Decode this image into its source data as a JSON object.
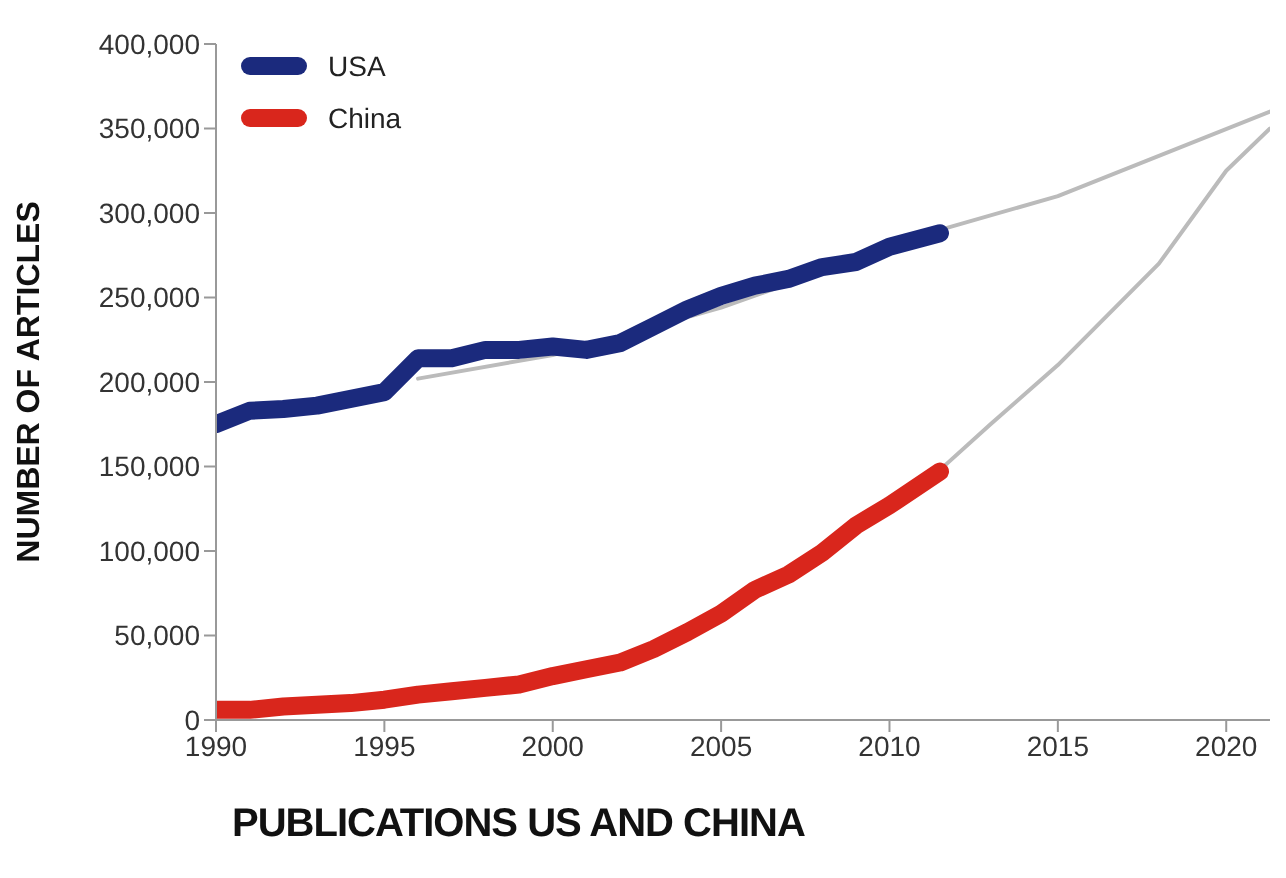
{
  "chart_data": {
    "type": "line",
    "title": "PUBLICATIONS US AND CHINA",
    "ylabel": "NUMBER OF ARTICLES",
    "xlim": [
      1990,
      2021.3
    ],
    "xticks": [
      1990,
      1995,
      2000,
      2005,
      2010,
      2015,
      2020
    ],
    "ylim": [
      0,
      400000
    ],
    "yticks": [
      0,
      {
        "value": 50000,
        "label": "50,000"
      },
      {
        "value": 100000,
        "label": "100,000"
      },
      {
        "value": 150000,
        "label": "150,000"
      },
      {
        "value": 200000,
        "label": "200,000"
      },
      {
        "value": 250000,
        "label": "250,000"
      },
      {
        "value": 300000,
        "label": "300,000"
      },
      {
        "value": 350000,
        "label": "350,000"
      },
      {
        "value": 400000,
        "label": "400,000"
      }
    ],
    "grid": false,
    "legend": "top left",
    "marker": "none",
    "line_style": "solid",
    "series": [
      {
        "type": "line",
        "color": "#bbbbbb",
        "x": [
          1996,
          2000,
          2005,
          2011.5,
          2015,
          2021.3
        ],
        "values": [
          202000,
          216000,
          244000,
          290000,
          310000,
          360000
        ]
      },
      {
        "type": "line",
        "color": "#bbbbbb",
        "x": [
          2011.5,
          2013,
          2015,
          2018,
          2020,
          2021.3
        ],
        "values": [
          148000,
          175000,
          210000,
          270000,
          325000,
          350000
        ]
      },
      {
        "name": "USA",
        "color": "#1b2a7d",
        "x": [
          1990,
          1991,
          1992,
          1993,
          1994,
          1995,
          1996,
          1997,
          1998,
          1999,
          2000,
          2001,
          2002,
          2003,
          2004,
          2005,
          2006,
          2007,
          2008,
          2009,
          2010,
          2011.5
        ],
        "values": [
          175000,
          183000,
          184000,
          186000,
          190000,
          194000,
          214000,
          214000,
          219000,
          219000,
          221000,
          219000,
          223000,
          233000,
          243000,
          251000,
          257000,
          261000,
          268000,
          271000,
          280000,
          288000
        ]
      },
      {
        "name": "China",
        "color": "#d9261c",
        "x": [
          1990,
          1991,
          1992,
          1993,
          1994,
          1995,
          1996,
          1997,
          1998,
          1999,
          2000,
          2001,
          2002,
          2003,
          2004,
          2005,
          2006,
          2007,
          2008,
          2009,
          2010,
          2011.5
        ],
        "values": [
          6000,
          6000,
          8000,
          9000,
          10000,
          12000,
          15000,
          17000,
          19000,
          21000,
          26000,
          30000,
          34000,
          42000,
          52000,
          63000,
          77000,
          86000,
          99000,
          115000,
          127000,
          147000
        ]
      }
    ]
  }
}
